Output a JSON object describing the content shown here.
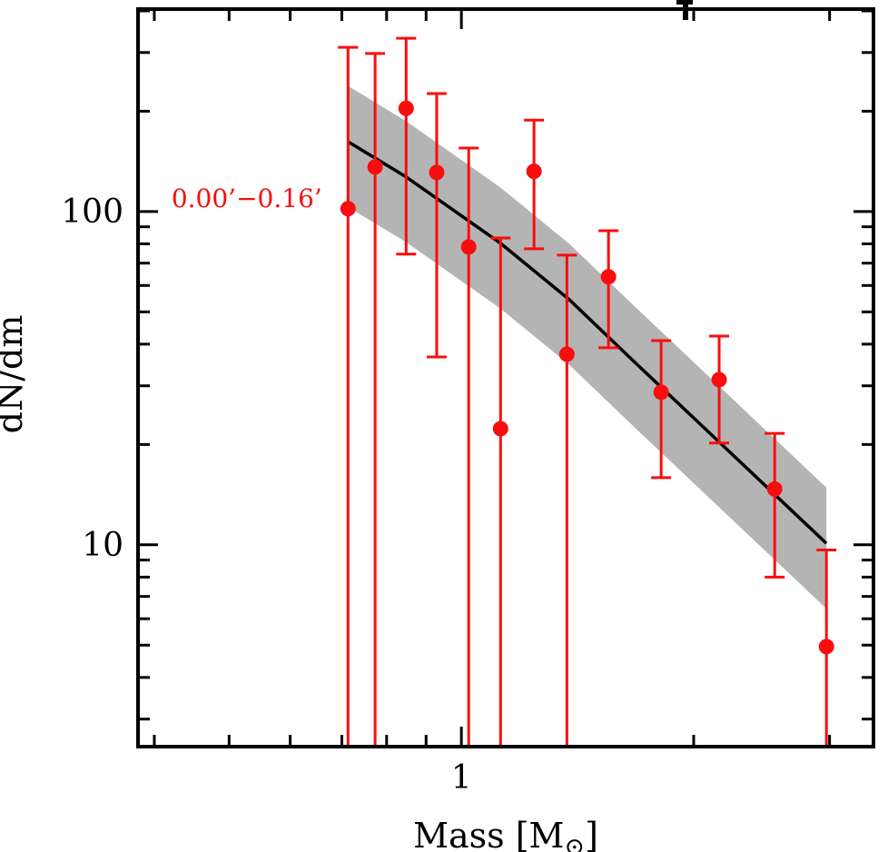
{
  "figure": {
    "ylabel": "dN/dm",
    "xlabel": {
      "pre": "Mass [M",
      "sub": "⊙",
      "post": "]"
    },
    "annotation": {
      "text": "0.00’−0.16’",
      "anchor_mass": 0.66,
      "anchor_value": 103
    }
  },
  "chart_data": {
    "type": "scatter",
    "title": "",
    "xlabel": "Mass [M⊙]",
    "ylabel": "dN/dm",
    "xscale": "log",
    "yscale": "log",
    "xlim": [
      0.381,
      3.42
    ],
    "ylim": [
      2.48,
      405
    ],
    "grid": false,
    "legend": "none",
    "colors": {
      "data": "#f90d0d",
      "model_line": "#000000",
      "band": "#b4b4b4",
      "axis": "#000000"
    },
    "x_major_ticks": [
      {
        "value": 1,
        "label": "1"
      }
    ],
    "x_minor_ticks": [
      0.4,
      0.5,
      0.6,
      0.7,
      0.8,
      0.9,
      2,
      3
    ],
    "y_major_ticks": [
      {
        "value": 10,
        "label": "10"
      },
      {
        "value": 100,
        "label": "100"
      }
    ],
    "y_minor_ticks": [
      3,
      4,
      5,
      6,
      7,
      8,
      9,
      20,
      30,
      40,
      50,
      60,
      70,
      80,
      90,
      200,
      300,
      400
    ],
    "series": [
      {
        "name": "observed counts 0.00'-0.16'",
        "type": "points_with_errorbars",
        "note_lo_null": "lower error bar extends below plot bottom (clipped)",
        "points": [
          {
            "mass": 0.713,
            "value": 102,
            "hi": 311,
            "lo": null
          },
          {
            "mass": 0.773,
            "value": 136,
            "hi": 298,
            "lo": null
          },
          {
            "mass": 0.848,
            "value": 204,
            "hi": 331,
            "lo": 74.5
          },
          {
            "mass": 0.929,
            "value": 131,
            "hi": 226,
            "lo": 36.6
          },
          {
            "mass": 1.022,
            "value": 78.3,
            "hi": 155,
            "lo": null
          },
          {
            "mass": 1.124,
            "value": 22.3,
            "hi": 83.3,
            "lo": null
          },
          {
            "mass": 1.242,
            "value": 132,
            "hi": 188,
            "lo": 77.3
          },
          {
            "mass": 1.37,
            "value": 37.3,
            "hi": 74.0,
            "lo": null
          },
          {
            "mass": 1.551,
            "value": 63.7,
            "hi": 87.6,
            "lo": 39.0
          },
          {
            "mass": 1.815,
            "value": 28.7,
            "hi": 41.0,
            "lo": 15.9
          },
          {
            "mass": 2.158,
            "value": 31.3,
            "hi": 42.3,
            "lo": 20.2
          },
          {
            "mass": 2.547,
            "value": 14.7,
            "hi": 21.6,
            "lo": 8.0
          },
          {
            "mass": 2.972,
            "value": 4.95,
            "hi": 9.65,
            "lo": null
          }
        ]
      },
      {
        "name": "model line",
        "type": "line",
        "points": [
          [
            0.713,
            162
          ],
          [
            0.848,
            127
          ],
          [
            1.124,
            80.3
          ],
          [
            1.38,
            54.4
          ],
          [
            1.682,
            35.1
          ],
          [
            2.972,
            10.1
          ]
        ]
      },
      {
        "name": "model uncertainty band",
        "type": "band",
        "ratio_hi": 1.47,
        "ratio_lo": 1.57
      }
    ]
  }
}
